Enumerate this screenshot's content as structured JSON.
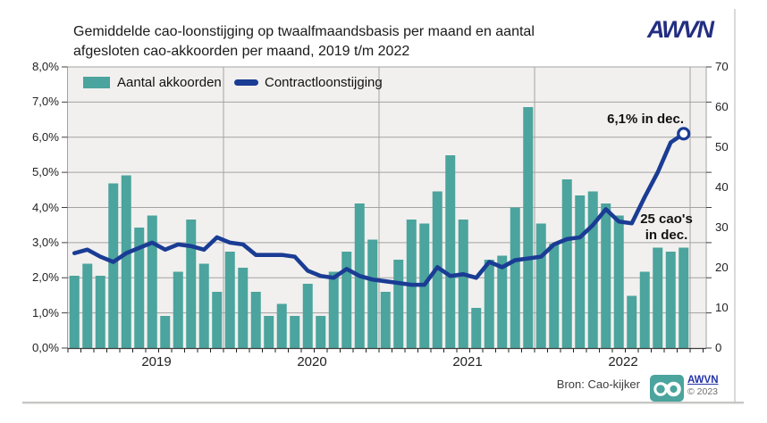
{
  "title": {
    "line1": "Gemiddelde cao-loonstijging op twaalfmaandsbasis per maand en aantal",
    "line2": "afgesloten cao-akkoorden per maand, 2019 t/m 2022"
  },
  "logo": {
    "text": "AWVN"
  },
  "footer": {
    "source": "Bron: Cao-kijker",
    "logo_small": "AWVN",
    "copyright": "© 2023"
  },
  "colors": {
    "bar_teal": "#4BA49D",
    "line_navy": "#1A3C94",
    "plot_background": "#F1F0EE",
    "gridline": "#A3A3A1",
    "logo_navy": "#232E82"
  },
  "chart_data": {
    "type": "bar+line",
    "title": "Gemiddelde cao-loonstijging op twaalfmaandsbasis per maand en aantal afgesloten cao-akkoorden per maand, 2019 t/m 2022",
    "period": {
      "start": "2019-01",
      "end": "2022-12",
      "months": 48
    },
    "x_year_labels": [
      "2019",
      "2020",
      "2021",
      "2022"
    ],
    "legend_position": "top-left-inside",
    "grid": true,
    "series": [
      {
        "name": "Aantal akkoorden",
        "type": "bar",
        "axis": "right",
        "color": "#4BA49D",
        "values": [
          18,
          21,
          18,
          41,
          43,
          30,
          33,
          8,
          19,
          32,
          21,
          14,
          24,
          20,
          14,
          8,
          11,
          8,
          16,
          8,
          19,
          24,
          36,
          27,
          14,
          22,
          32,
          31,
          39,
          48,
          32,
          10,
          22,
          23,
          35,
          60,
          31,
          26,
          42,
          38,
          39,
          36,
          33,
          13,
          19,
          25,
          24,
          25
        ]
      },
      {
        "name": "Contractloonstijging",
        "type": "line",
        "axis": "left",
        "color": "#1A3C94",
        "end_marker": "open-circle",
        "values": [
          2.7,
          2.8,
          2.6,
          2.45,
          2.7,
          2.85,
          3.0,
          2.8,
          2.95,
          2.9,
          2.8,
          3.15,
          3.0,
          2.95,
          2.65,
          2.65,
          2.65,
          2.6,
          2.2,
          2.05,
          2.0,
          2.25,
          2.05,
          1.95,
          1.9,
          1.85,
          1.8,
          1.8,
          2.3,
          2.05,
          2.1,
          2.0,
          2.45,
          2.3,
          2.5,
          2.55,
          2.6,
          2.95,
          3.1,
          3.15,
          3.5,
          3.95,
          3.6,
          3.55,
          4.3,
          5.0,
          5.85,
          6.1
        ]
      }
    ],
    "left_axis": {
      "min": 0,
      "max": 8,
      "step": 1,
      "tick_labels": [
        "0,0%",
        "1,0%",
        "2,0%",
        "3,0%",
        "4,0%",
        "5,0%",
        "6,0%",
        "7,0%",
        "8,0%"
      ]
    },
    "right_axis": {
      "min": 0,
      "max": 70,
      "step": 10,
      "tick_labels": [
        "0",
        "10",
        "20",
        "30",
        "40",
        "50",
        "60",
        "70"
      ]
    },
    "annotations": {
      "wage_dec": "6,1% in dec.",
      "cao_dec_line1": "25 cao's",
      "cao_dec_line2": "in dec."
    }
  }
}
